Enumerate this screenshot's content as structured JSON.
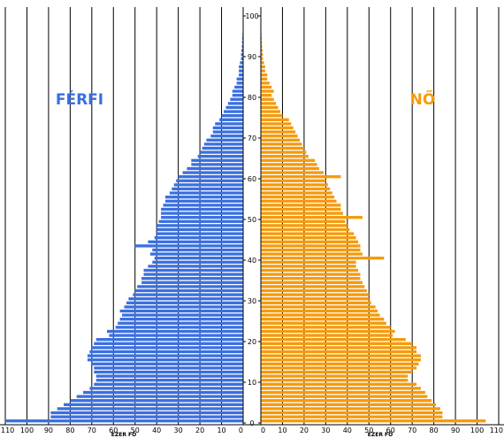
{
  "chart_data": {
    "type": "bar",
    "orientation": "horizontal",
    "chart_kind": "population-pyramid",
    "left_label": "FÉRFI",
    "right_label": "NŐ",
    "x_axis_title": "EZER FŐ",
    "x_ticks_left": [
      110,
      100,
      90,
      80,
      70,
      60,
      50,
      40,
      30,
      20,
      10,
      0
    ],
    "x_ticks_right": [
      0,
      10,
      20,
      30,
      40,
      50,
      60,
      70,
      80,
      90,
      100,
      110
    ],
    "age_ticks": [
      0,
      10,
      20,
      30,
      40,
      50,
      60,
      70,
      80,
      90,
      100
    ],
    "xlim": [
      0,
      110
    ],
    "ylim": [
      0,
      100
    ],
    "grid": true,
    "colors": {
      "male": "#3a6fe0",
      "female": "#f59a0c",
      "grid": "#000000"
    },
    "categories": [
      0,
      1,
      2,
      3,
      4,
      5,
      6,
      7,
      8,
      9,
      10,
      11,
      12,
      13,
      14,
      15,
      16,
      17,
      18,
      19,
      20,
      21,
      22,
      23,
      24,
      25,
      26,
      27,
      28,
      29,
      30,
      31,
      32,
      33,
      34,
      35,
      36,
      37,
      38,
      39,
      40,
      41,
      42,
      43,
      44,
      45,
      46,
      47,
      48,
      49,
      50,
      51,
      52,
      53,
      54,
      55,
      56,
      57,
      58,
      59,
      60,
      61,
      62,
      63,
      64,
      65,
      66,
      67,
      68,
      69,
      70,
      71,
      72,
      73,
      74,
      75,
      76,
      77,
      78,
      79,
      80,
      81,
      82,
      83,
      84,
      85,
      86,
      87,
      88,
      89,
      90,
      91,
      92,
      93,
      94,
      95,
      96,
      97,
      98,
      99
    ],
    "series": [
      {
        "name": "FÉRFI",
        "values": [
          110,
          89,
          89,
          86,
          83,
          80,
          77,
          74,
          71,
          69,
          68,
          68,
          69,
          69,
          70,
          72,
          72,
          71,
          70,
          69,
          68,
          62,
          63,
          59,
          58,
          57,
          56,
          57,
          55,
          54,
          53,
          51,
          50,
          49,
          47,
          47,
          46,
          46,
          44,
          42,
          41,
          43,
          42,
          50,
          44,
          41,
          40,
          40,
          40,
          39,
          38,
          38,
          38,
          37,
          36,
          36,
          34,
          33,
          32,
          31,
          30,
          28,
          26,
          24,
          24,
          21,
          20,
          19,
          18,
          17,
          15,
          14,
          14,
          13,
          11,
          10,
          9,
          8,
          7,
          6,
          5,
          5,
          4,
          3,
          3,
          2,
          2,
          2,
          1.5,
          1,
          1,
          0.8,
          0.6,
          0.5,
          0.4,
          0.3,
          0.2,
          0.1,
          0.1,
          0.1
        ]
      },
      {
        "name": "NŐ",
        "values": [
          104,
          84,
          84,
          83,
          81,
          79,
          77,
          76,
          74,
          72,
          68,
          68,
          70,
          72,
          73,
          74,
          74,
          72,
          72,
          70,
          67,
          61,
          62,
          60,
          58,
          57,
          55,
          54,
          53,
          51,
          50,
          50,
          49,
          48,
          47,
          46,
          46,
          45,
          44,
          44,
          57,
          47,
          46,
          46,
          45,
          44,
          43,
          41,
          40,
          39,
          47,
          38,
          37,
          37,
          35,
          34,
          33,
          32,
          31,
          30,
          37,
          29,
          27,
          26,
          25,
          22,
          21,
          20,
          19,
          18,
          17,
          16,
          15,
          14,
          13,
          10,
          9,
          8,
          7,
          6,
          5,
          6,
          5,
          4,
          3,
          3,
          2,
          2,
          1.5,
          1,
          1,
          0.8,
          0.6,
          0.5,
          0.4,
          0.3,
          0.2,
          0.1,
          0.1,
          0.1
        ]
      }
    ]
  }
}
